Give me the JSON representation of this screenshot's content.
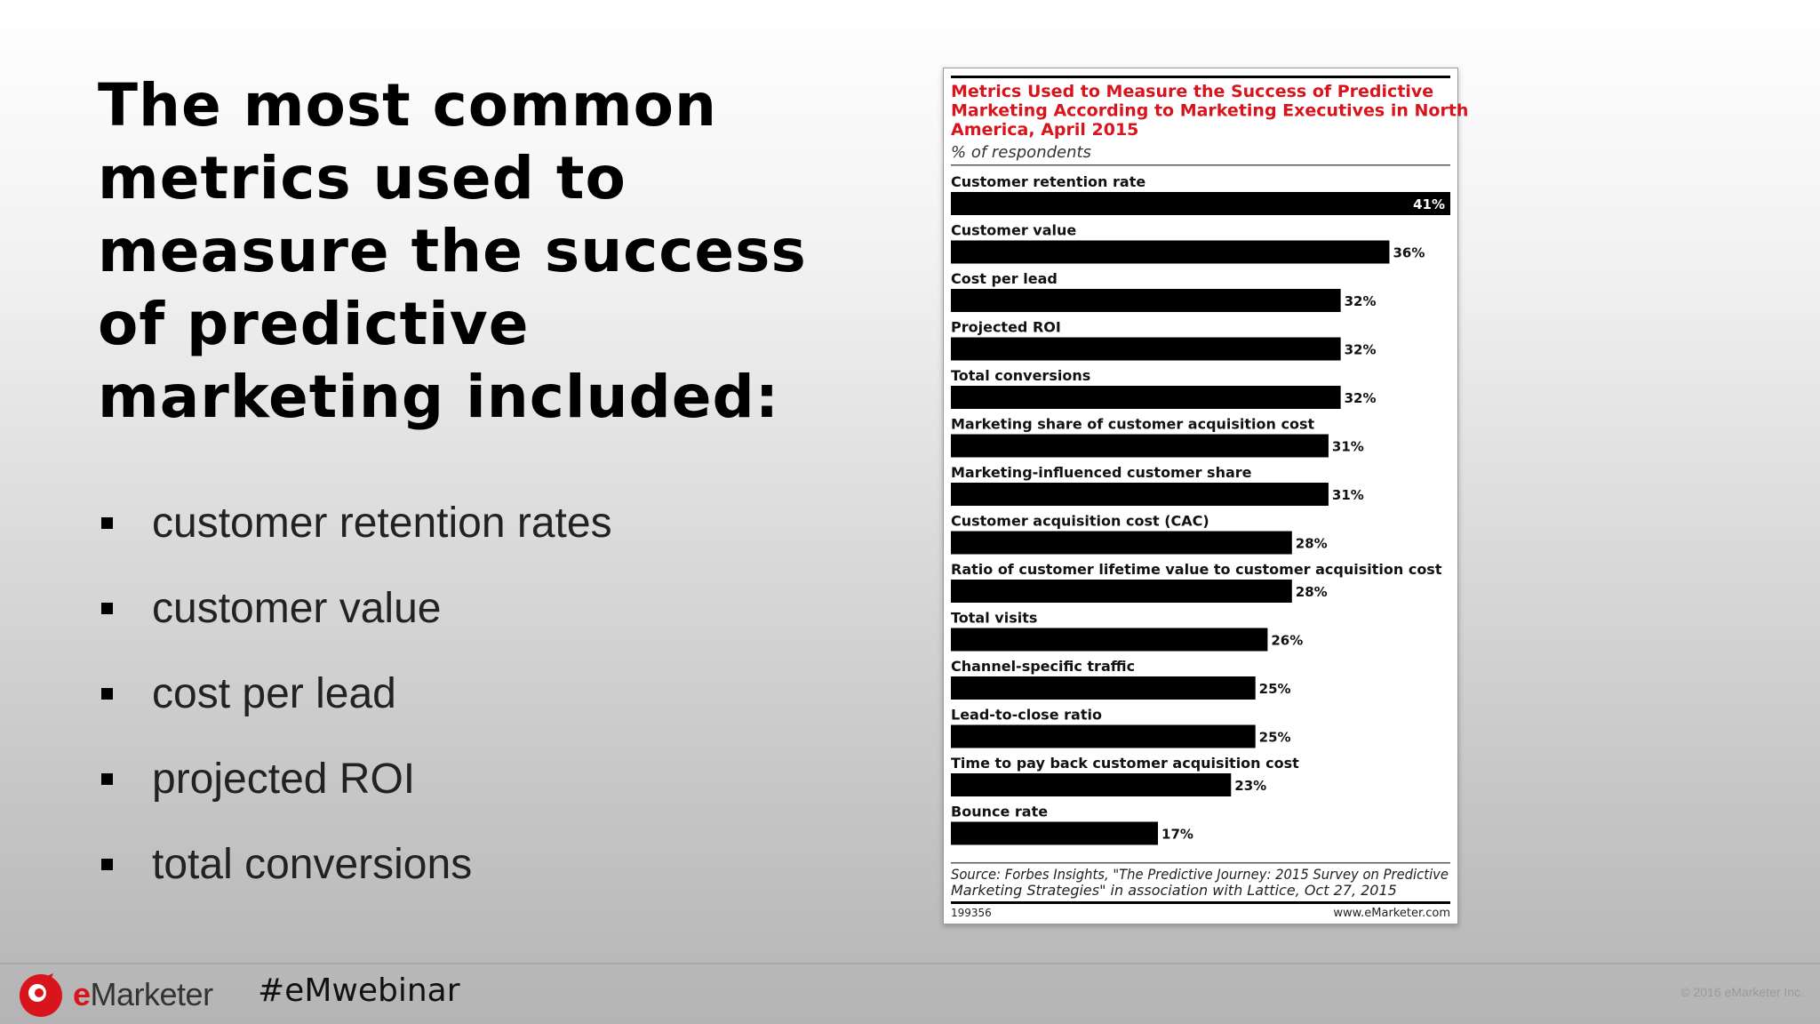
{
  "slide": {
    "title": "The most common metrics used to measure the success of predictive marketing included:",
    "bullets": [
      "customer retention rates",
      "customer value",
      "cost per lead",
      "projected ROI",
      "total conversions"
    ]
  },
  "footer": {
    "brand": "Marketer",
    "brand_prefix": "e",
    "hashtag": "#eMwebinar",
    "copyright": "© 2016 eMarketer Inc."
  },
  "chart_data": {
    "type": "bar",
    "orientation": "horizontal",
    "title": "Metrics Used to Measure the Success of Predictive Marketing According to Marketing Executives in North America, April 2015",
    "subtitle": "% of respondents",
    "categories": [
      "Customer retention rate",
      "Customer value",
      "Cost per lead",
      "Projected ROI",
      "Total conversions",
      "Marketing share of customer acquisition cost",
      "Marketing-influenced customer share",
      "Customer acquisition cost (CAC)",
      "Ratio of customer lifetime value to customer acquisition cost",
      "Total visits",
      "Channel-specific traffic",
      "Lead-to-close ratio",
      "Time to pay back customer acquisition cost",
      "Bounce rate"
    ],
    "values": [
      41,
      36,
      32,
      32,
      32,
      31,
      31,
      28,
      28,
      26,
      25,
      25,
      23,
      17
    ],
    "value_labels": [
      "41%",
      "36%",
      "32%",
      "32%",
      "32%",
      "31%",
      "31%",
      "28%",
      "28%",
      "26%",
      "25%",
      "25%",
      "23%",
      "17%"
    ],
    "xlim": [
      0,
      41
    ],
    "bar_color": "#000000",
    "title_color": "#d8141c",
    "source": "Source: Forbes Insights, \"The Predictive Journey: 2015 Survey on Predictive Marketing Strategies\" in association with Lattice, Oct 27, 2015",
    "chart_id": "199356",
    "website": "www.eMarketer.com"
  }
}
